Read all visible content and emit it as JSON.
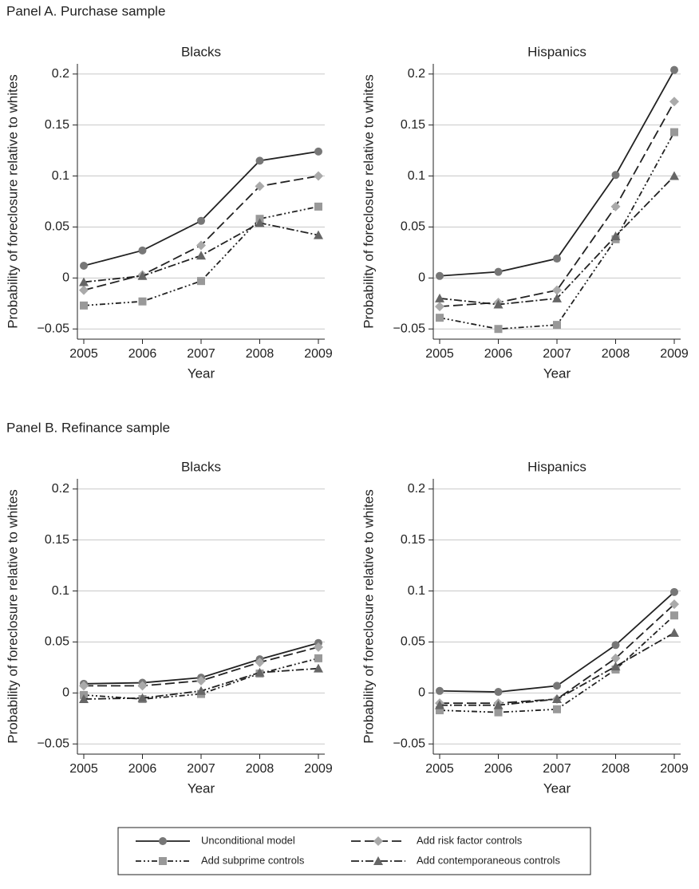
{
  "panel_titles": [
    "Panel A. Purchase sample",
    "Panel B. Refinance sample"
  ],
  "chart_data": [
    {
      "type": "line",
      "title": "Blacks",
      "x_label": "Year",
      "y_label": "Probability of foreclosure relative to whites",
      "categories": [
        "2005",
        "2006",
        "2007",
        "2008",
        "2009"
      ],
      "ylim": [
        -0.06,
        0.21
      ],
      "yticks": [
        {
          "value": -0.05,
          "label": "−0.05"
        },
        0,
        0.05,
        0.1,
        0.15,
        0.2
      ],
      "grid": true,
      "series": [
        {
          "name": "Unconditional model",
          "color": "#222",
          "marker_color": "#777",
          "marker": "circle",
          "dash": "solid",
          "values": [
            0.012,
            0.027,
            0.056,
            0.115,
            0.124
          ]
        },
        {
          "name": "Add risk factor controls",
          "color": "#222",
          "marker_color": "#aaa",
          "marker": "diamond",
          "dash": "dash",
          "values": [
            -0.012,
            0.003,
            0.032,
            0.09,
            0.1
          ]
        },
        {
          "name": "Add subprime controls",
          "color": "#222",
          "marker_color": "#999",
          "marker": "square",
          "dash": "dashdotdot",
          "values": [
            -0.027,
            -0.023,
            -0.003,
            0.058,
            0.07
          ]
        },
        {
          "name": "Add contemporaneous controls",
          "color": "#222",
          "marker_color": "#666",
          "marker": "triangle",
          "dash": "dashdot",
          "values": [
            -0.004,
            0.002,
            0.022,
            0.054,
            0.042
          ]
        }
      ]
    },
    {
      "type": "line",
      "title": "Hispanics",
      "x_label": "Year",
      "y_label": "Probability of foreclosure relative to whites",
      "categories": [
        "2005",
        "2006",
        "2007",
        "2008",
        "2009"
      ],
      "ylim": [
        -0.06,
        0.21
      ],
      "yticks": [
        {
          "value": -0.05,
          "label": "−0.05"
        },
        0,
        0.05,
        0.1,
        0.15,
        0.2
      ],
      "grid": true,
      "series": [
        {
          "name": "Unconditional model",
          "color": "#222",
          "marker_color": "#777",
          "marker": "circle",
          "dash": "solid",
          "values": [
            0.002,
            0.006,
            0.019,
            0.101,
            0.204
          ]
        },
        {
          "name": "Add risk factor controls",
          "color": "#222",
          "marker_color": "#aaa",
          "marker": "diamond",
          "dash": "dash",
          "values": [
            -0.028,
            -0.024,
            -0.012,
            0.07,
            0.173
          ]
        },
        {
          "name": "Add subprime controls",
          "color": "#222",
          "marker_color": "#999",
          "marker": "square",
          "dash": "dashdotdot",
          "values": [
            -0.039,
            -0.05,
            -0.046,
            0.038,
            0.143
          ]
        },
        {
          "name": "Add contemporaneous controls",
          "color": "#222",
          "marker_color": "#666",
          "marker": "triangle",
          "dash": "dashdot",
          "values": [
            -0.02,
            -0.026,
            -0.02,
            0.041,
            0.1
          ]
        }
      ]
    },
    {
      "type": "line",
      "title": "Blacks",
      "x_label": "Year",
      "y_label": "Probability of foreclosure relative to whites",
      "categories": [
        "2005",
        "2006",
        "2007",
        "2008",
        "2009"
      ],
      "ylim": [
        -0.06,
        0.21
      ],
      "yticks": [
        {
          "value": -0.05,
          "label": "−0.05"
        },
        0,
        0.05,
        0.1,
        0.15,
        0.2
      ],
      "grid": true,
      "series": [
        {
          "name": "Unconditional model",
          "color": "#222",
          "marker_color": "#777",
          "marker": "circle",
          "dash": "solid",
          "values": [
            0.009,
            0.01,
            0.015,
            0.033,
            0.049
          ]
        },
        {
          "name": "Add risk factor controls",
          "color": "#222",
          "marker_color": "#aaa",
          "marker": "diamond",
          "dash": "dash",
          "values": [
            0.007,
            0.007,
            0.012,
            0.03,
            0.045
          ]
        },
        {
          "name": "Add subprime controls",
          "color": "#222",
          "marker_color": "#999",
          "marker": "square",
          "dash": "dashdotdot",
          "values": [
            -0.002,
            -0.006,
            -0.001,
            0.019,
            0.034
          ]
        },
        {
          "name": "Add contemporaneous controls",
          "color": "#222",
          "marker_color": "#666",
          "marker": "triangle",
          "dash": "dashdot",
          "values": [
            -0.006,
            -0.005,
            0.002,
            0.02,
            0.024
          ]
        }
      ]
    },
    {
      "type": "line",
      "title": "Hispanics",
      "x_label": "Year",
      "y_label": "Probability of foreclosure relative to whites",
      "categories": [
        "2005",
        "2006",
        "2007",
        "2008",
        "2009"
      ],
      "ylim": [
        -0.06,
        0.21
      ],
      "yticks": [
        {
          "value": -0.05,
          "label": "−0.05"
        },
        0,
        0.05,
        0.1,
        0.15,
        0.2
      ],
      "grid": true,
      "series": [
        {
          "name": "Unconditional model",
          "color": "#222",
          "marker_color": "#777",
          "marker": "circle",
          "dash": "solid",
          "values": [
            0.002,
            0.001,
            0.007,
            0.047,
            0.099
          ]
        },
        {
          "name": "Add risk factor controls",
          "color": "#222",
          "marker_color": "#aaa",
          "marker": "diamond",
          "dash": "dash",
          "values": [
            -0.01,
            -0.01,
            -0.006,
            0.034,
            0.087
          ]
        },
        {
          "name": "Add subprime controls",
          "color": "#222",
          "marker_color": "#999",
          "marker": "square",
          "dash": "dashdotdot",
          "values": [
            -0.017,
            -0.019,
            -0.016,
            0.023,
            0.076
          ]
        },
        {
          "name": "Add contemporaneous controls",
          "color": "#222",
          "marker_color": "#666",
          "marker": "triangle",
          "dash": "dashdot",
          "values": [
            -0.012,
            -0.012,
            -0.006,
            0.026,
            0.059
          ]
        }
      ]
    }
  ]
}
